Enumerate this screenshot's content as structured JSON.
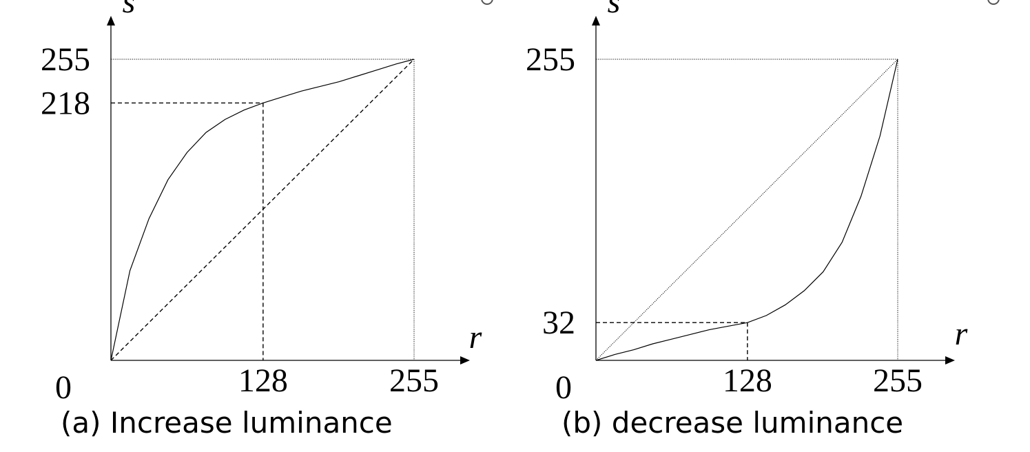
{
  "chart_data": [
    {
      "type": "line",
      "caption": "(a) Increase luminance",
      "xlabel": "r",
      "ylabel": "s",
      "xlim": [
        0,
        255
      ],
      "ylim": [
        0,
        255
      ],
      "origin_label": "0",
      "x_ticks": [
        "128",
        "255"
      ],
      "y_ticks": [
        "218",
        "255"
      ],
      "series": [
        {
          "style": "solid",
          "x": [
            0,
            16,
            32,
            48,
            64,
            80,
            96,
            112,
            128,
            144,
            160,
            176,
            192,
            208,
            224,
            240,
            255
          ],
          "y": [
            0,
            76,
            120,
            153,
            176,
            193,
            204,
            212,
            218,
            223,
            228,
            232,
            236,
            241,
            246,
            251,
            255
          ]
        },
        {
          "style": "dashed",
          "x": [
            0,
            255
          ],
          "y": [
            0,
            255
          ]
        }
      ],
      "guide": {
        "x": 128,
        "y": 218
      }
    },
    {
      "type": "line",
      "caption": "(b) decrease luminance",
      "xlabel": "r",
      "ylabel": "s",
      "xlim": [
        0,
        255
      ],
      "ylim": [
        0,
        255
      ],
      "origin_label": "0",
      "x_ticks": [
        "128",
        "255"
      ],
      "y_ticks": [
        "32",
        "255"
      ],
      "series": [
        {
          "style": "solid",
          "x": [
            0,
            16,
            32,
            48,
            64,
            80,
            96,
            112,
            128,
            144,
            160,
            176,
            192,
            208,
            224,
            240,
            255
          ],
          "y": [
            0,
            5,
            9,
            14,
            18,
            22,
            26,
            29,
            32,
            38,
            47,
            59,
            75,
            100,
            139,
            190,
            255
          ]
        },
        {
          "style": "dotted",
          "x": [
            0,
            255
          ],
          "y": [
            0,
            255
          ]
        }
      ],
      "guide": {
        "x": 128,
        "y": 32
      }
    }
  ]
}
